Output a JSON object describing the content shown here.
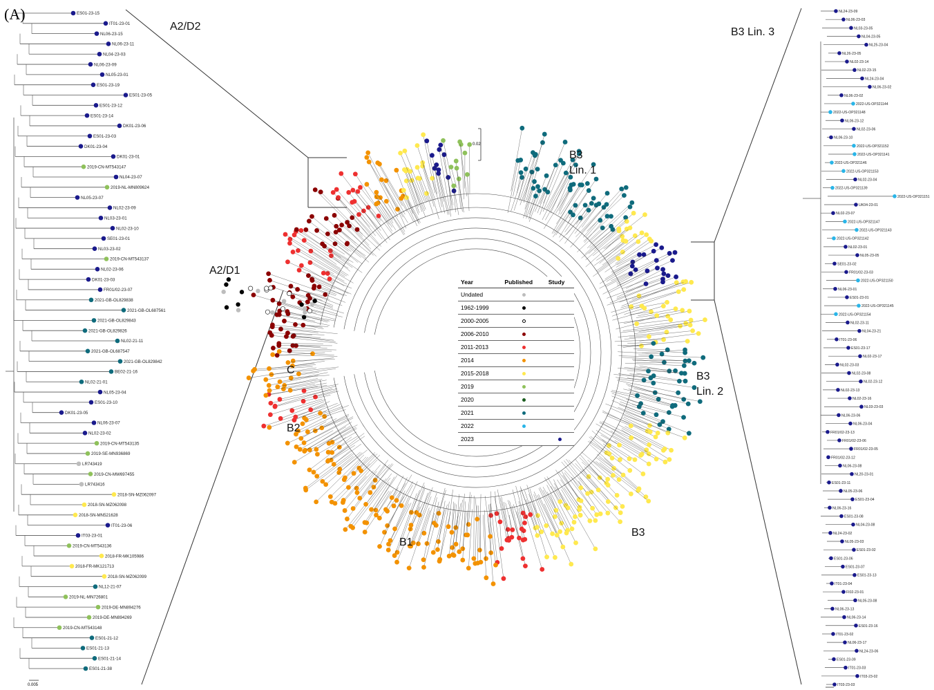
{
  "panel_label": "(A)",
  "clade_labels": {
    "a2d2": "A2/D2",
    "b3lin3": "B3 Lin. 3",
    "b3lin1": "B3\nLin. 1",
    "a2d1": "A2/D1",
    "c": "C",
    "b2": "B2",
    "b1": "B1",
    "b3": "B3",
    "b3lin2": "B3\nLin. 2"
  },
  "scale_left": "0.005",
  "scale_center": "0.02",
  "legend": {
    "headers": [
      "Year",
      "Published",
      "Study"
    ],
    "rows": [
      {
        "year": "Undated",
        "published_color": "#bdbdbd",
        "study": false
      },
      {
        "year": "1962-1999",
        "published_color": "#000000",
        "study": false
      },
      {
        "year": "2000-2005",
        "published_color": "hollow",
        "study": false
      },
      {
        "year": "2006-2010",
        "published_color": "#8b0000",
        "study": false
      },
      {
        "year": "2011-2013",
        "published_color": "#ee3030",
        "study": false
      },
      {
        "year": "2014",
        "published_color": "#f39200",
        "study": false
      },
      {
        "year": "2015-2018",
        "published_color": "#ffe94f",
        "study": false
      },
      {
        "year": "2019",
        "published_color": "#8fc15b",
        "study": false
      },
      {
        "year": "2020",
        "published_color": "#1c5e20",
        "study": false
      },
      {
        "year": "2021",
        "published_color": "#0f6b7c",
        "study": false
      },
      {
        "year": "2022",
        "published_color": "#29b5e8",
        "study": false
      },
      {
        "year": "2023",
        "published_color": "",
        "study": true,
        "study_color": "#1a1a8c"
      }
    ]
  },
  "colors": {
    "undated": "#bdbdbd",
    "y1962": "#000000",
    "y2006": "#8b0000",
    "y2011": "#ee3030",
    "y2014": "#f39200",
    "y2015": "#ffe94f",
    "y2019": "#8fc15b",
    "y2020": "#1c5e20",
    "y2021": "#0f6b7c",
    "y2022": "#29b5e8",
    "y2023": "#1a1a8c"
  },
  "left_tips": [
    {
      "label": "ES01-23-15",
      "c": "y2023"
    },
    {
      "label": "IT01-23-01",
      "c": "y2023"
    },
    {
      "label": "NL06-23-15",
      "c": "y2023"
    },
    {
      "label": "NL06-23-11",
      "c": "y2023"
    },
    {
      "label": "NL04-23-03",
      "c": "y2023"
    },
    {
      "label": "NL06-23-09",
      "c": "y2023"
    },
    {
      "label": "NL05-23-01",
      "c": "y2023"
    },
    {
      "label": "ES01-23-19",
      "c": "y2023"
    },
    {
      "label": "ES01-23-05",
      "c": "y2023"
    },
    {
      "label": "ES01-23-12",
      "c": "y2023"
    },
    {
      "label": "ES01-23-14",
      "c": "y2023"
    },
    {
      "label": "DK01-23-06",
      "c": "y2023"
    },
    {
      "label": "ES01-23-03",
      "c": "y2023"
    },
    {
      "label": "DK01-23-04",
      "c": "y2023"
    },
    {
      "label": "DK01-23-01",
      "c": "y2023"
    },
    {
      "label": "2019-CN-MT543147",
      "c": "y2019"
    },
    {
      "label": "NL04-23-07",
      "c": "y2023"
    },
    {
      "label": "2019-NL-MN809624",
      "c": "y2019"
    },
    {
      "label": "NL05-23-07",
      "c": "y2023"
    },
    {
      "label": "NL02-23-09",
      "c": "y2023"
    },
    {
      "label": "NL03-23-01",
      "c": "y2023"
    },
    {
      "label": "NL02-23-10",
      "c": "y2023"
    },
    {
      "label": "SE01-23-01",
      "c": "y2023"
    },
    {
      "label": "NL03-23-02",
      "c": "y2023"
    },
    {
      "label": "2019-CN-MT543137",
      "c": "y2019"
    },
    {
      "label": "NL02-23-06",
      "c": "y2023"
    },
    {
      "label": "DK01-23-03",
      "c": "y2023"
    },
    {
      "label": "FR01/02-23-07",
      "c": "y2023"
    },
    {
      "label": "2021-GB-OL829838",
      "c": "y2021"
    },
    {
      "label": "2021-GB-OL687561",
      "c": "y2021"
    },
    {
      "label": "2021-GB-OL829843",
      "c": "y2021"
    },
    {
      "label": "2021-GB-OL829826",
      "c": "y2021"
    },
    {
      "label": "NL02-21-11",
      "c": "y2021"
    },
    {
      "label": "2021-GB-OL687547",
      "c": "y2021"
    },
    {
      "label": "2021-GB-OL829842",
      "c": "y2021"
    },
    {
      "label": "BE02-21-16",
      "c": "y2021"
    },
    {
      "label": "NL02-21-01",
      "c": "y2021"
    },
    {
      "label": "NL05-23-04",
      "c": "y2023"
    },
    {
      "label": "ES01-23-10",
      "c": "y2023"
    },
    {
      "label": "DK01-23-05",
      "c": "y2023"
    },
    {
      "label": "NL06-23-07",
      "c": "y2023"
    },
    {
      "label": "NL02-23-02",
      "c": "y2023"
    },
    {
      "label": "2019-CN-MT543135",
      "c": "y2019"
    },
    {
      "label": "2019-SE-MN936869",
      "c": "y2019"
    },
    {
      "label": "LR743419",
      "c": "undated"
    },
    {
      "label": "2019-CN-MW697455",
      "c": "y2019"
    },
    {
      "label": "LR743416",
      "c": "undated"
    },
    {
      "label": "2018-SN-MZ062097",
      "c": "y2015"
    },
    {
      "label": "2018-SN-MZ062098",
      "c": "y2015"
    },
    {
      "label": "2018-SN-MN521628",
      "c": "y2015"
    },
    {
      "label": "IT01-23-06",
      "c": "y2023"
    },
    {
      "label": "IT03-23-01",
      "c": "y2023"
    },
    {
      "label": "2019-CN-MT543136",
      "c": "y2019"
    },
    {
      "label": "2018-FR-MK105986",
      "c": "y2015"
    },
    {
      "label": "2018-FR-MK121713",
      "c": "y2015"
    },
    {
      "label": "2018-SN-MZ062099",
      "c": "y2015"
    },
    {
      "label": "NL12-21-07",
      "c": "y2021"
    },
    {
      "label": "2019-NL-MN726801",
      "c": "y2019"
    },
    {
      "label": "2019-DE-MN894276",
      "c": "y2019"
    },
    {
      "label": "2019-DE-MN894269",
      "c": "y2019"
    },
    {
      "label": "2019-CN-MT543148",
      "c": "y2019"
    },
    {
      "label": "ES01-21-12",
      "c": "y2021"
    },
    {
      "label": "ES01-21-13",
      "c": "y2021"
    },
    {
      "label": "ES01-21-14",
      "c": "y2021"
    },
    {
      "label": "ES01-21-38",
      "c": "y2021"
    }
  ],
  "right_tips": [
    {
      "label": "NL24-23-09",
      "c": "y2023"
    },
    {
      "label": "NL06-23-03",
      "c": "y2023"
    },
    {
      "label": "NL03-23-05",
      "c": "y2023"
    },
    {
      "label": "NL04-23-05",
      "c": "y2023"
    },
    {
      "label": "NL25-23-04",
      "c": "y2023"
    },
    {
      "label": "NL26-23-05",
      "c": "y2023"
    },
    {
      "label": "NL02-23-14",
      "c": "y2023"
    },
    {
      "label": "NL02-23-15",
      "c": "y2023"
    },
    {
      "label": "NL24-23-04",
      "c": "y2023"
    },
    {
      "label": "NL06-23-02",
      "c": "y2023"
    },
    {
      "label": "NL06-23-02",
      "c": "y2023"
    },
    {
      "label": "2022-US-OP321144",
      "c": "y2022"
    },
    {
      "label": "2022-US-OP321148",
      "c": "y2022"
    },
    {
      "label": "NL06-23-12",
      "c": "y2023"
    },
    {
      "label": "NL02-23-06",
      "c": "y2023"
    },
    {
      "label": "NL06-23-10",
      "c": "y2023"
    },
    {
      "label": "2022-US-OP321152",
      "c": "y2022"
    },
    {
      "label": "2022-US-OP321141",
      "c": "y2022"
    },
    {
      "label": "2022-US-OP321146",
      "c": "y2022"
    },
    {
      "label": "2022-US-OP321153",
      "c": "y2022"
    },
    {
      "label": "NL02-23-04",
      "c": "y2023"
    },
    {
      "label": "2022-US-OP321139",
      "c": "y2022"
    },
    {
      "label": "2022-US-OP321151",
      "c": "y2022"
    },
    {
      "label": "UK04-23-01",
      "c": "y2023"
    },
    {
      "label": "NL02-23-07",
      "c": "y2023"
    },
    {
      "label": "2022-US-OP321147",
      "c": "y2022"
    },
    {
      "label": "2022-US-OP321143",
      "c": "y2022"
    },
    {
      "label": "2022-US-OP321142",
      "c": "y2022"
    },
    {
      "label": "NL02-23-01",
      "c": "y2023"
    },
    {
      "label": "NL05-23-05",
      "c": "y2023"
    },
    {
      "label": "SE01-23-02",
      "c": "y2023"
    },
    {
      "label": "FR01/02-23-03",
      "c": "y2023"
    },
    {
      "label": "2022-US-OP321150",
      "c": "y2022"
    },
    {
      "label": "NL06-23-01",
      "c": "y2023"
    },
    {
      "label": "ES01-23-01",
      "c": "y2023"
    },
    {
      "label": "2022-US-OP321145",
      "c": "y2022"
    },
    {
      "label": "2022-US-OP321154",
      "c": "y2022"
    },
    {
      "label": "NL02-23-11",
      "c": "y2023"
    },
    {
      "label": "NL04-23-21",
      "c": "y2023"
    },
    {
      "label": "IT01-23-06",
      "c": "y2023"
    },
    {
      "label": "ES01-23-17",
      "c": "y2023"
    },
    {
      "label": "NL02-23-17",
      "c": "y2023"
    },
    {
      "label": "NL02-23-03",
      "c": "y2023"
    },
    {
      "label": "NL02-23-08",
      "c": "y2023"
    },
    {
      "label": "NL02-23-12",
      "c": "y2023"
    },
    {
      "label": "NL02-23-13",
      "c": "y2023"
    },
    {
      "label": "NL02-23-16",
      "c": "y2023"
    },
    {
      "label": "NL03-23-03",
      "c": "y2023"
    },
    {
      "label": "NL06-23-06",
      "c": "y2023"
    },
    {
      "label": "NL06-23-04",
      "c": "y2023"
    },
    {
      "label": "FR01/02-23-13",
      "c": "y2023"
    },
    {
      "label": "FR01/02-23-06",
      "c": "y2023"
    },
    {
      "label": "FR01/02-23-05",
      "c": "y2023"
    },
    {
      "label": "FR01/02-23-12",
      "c": "y2023"
    },
    {
      "label": "NL06-23-08",
      "c": "y2023"
    },
    {
      "label": "NL20-23-01",
      "c": "y2023"
    },
    {
      "label": "ES01-23-11",
      "c": "y2023"
    },
    {
      "label": "NL05-23-06",
      "c": "y2023"
    },
    {
      "label": "ES01-23-04",
      "c": "y2023"
    },
    {
      "label": "NL06-23-16",
      "c": "y2023"
    },
    {
      "label": "ES01-23-08",
      "c": "y2023"
    },
    {
      "label": "NL04-23-08",
      "c": "y2023"
    },
    {
      "label": "NL24-23-02",
      "c": "y2023"
    },
    {
      "label": "NL05-23-03",
      "c": "y2023"
    },
    {
      "label": "ES01-23-02",
      "c": "y2023"
    },
    {
      "label": "ES01-23-06",
      "c": "y2023"
    },
    {
      "label": "ES01-23-07",
      "c": "y2023"
    },
    {
      "label": "ES01-23-13",
      "c": "y2023"
    },
    {
      "label": "IT01-23-04",
      "c": "y2023"
    },
    {
      "label": "FI02-23-01",
      "c": "y2023"
    },
    {
      "label": "NL05-23-08",
      "c": "y2023"
    },
    {
      "label": "NL06-23-13",
      "c": "y2023"
    },
    {
      "label": "NL06-23-14",
      "c": "y2023"
    },
    {
      "label": "ES01-23-16",
      "c": "y2023"
    },
    {
      "label": "IT01-23-02",
      "c": "y2023"
    },
    {
      "label": "NL06-23-17",
      "c": "y2023"
    },
    {
      "label": "NL24-23-06",
      "c": "y2023"
    },
    {
      "label": "ES01-23-09",
      "c": "y2023"
    },
    {
      "label": "IT01-23-03",
      "c": "y2023"
    },
    {
      "label": "IT03-23-02",
      "c": "y2023"
    },
    {
      "label": "IT03-23-03",
      "c": "y2023"
    }
  ],
  "radial_sectors": [
    {
      "from": 180,
      "to": 205,
      "c": "y2006"
    },
    {
      "from": 205,
      "to": 215,
      "c": "y2011"
    },
    {
      "from": 215,
      "to": 228,
      "c": "y2006"
    },
    {
      "from": 228,
      "to": 236,
      "c": "y2011"
    },
    {
      "from": 236,
      "to": 246,
      "c": "y2014"
    },
    {
      "from": 246,
      "to": 256,
      "c": "y2015"
    },
    {
      "from": 256,
      "to": 262,
      "c": "y2023"
    },
    {
      "from": 262,
      "to": 268,
      "c": "y2019"
    },
    {
      "from": 282,
      "to": 318,
      "c": "y2021"
    },
    {
      "from": 318,
      "to": 328,
      "c": "y2015"
    },
    {
      "from": 328,
      "to": 340,
      "c": "y2023"
    },
    {
      "from": 340,
      "to": 358,
      "c": "y2015"
    },
    {
      "from": 358,
      "to": 382,
      "c": "y2021"
    },
    {
      "from": 382,
      "to": 405,
      "c": "y2015"
    },
    {
      "from": 405,
      "to": 432,
      "c": "y2015"
    },
    {
      "from": 432,
      "to": 445,
      "c": "y2011"
    },
    {
      "from": 445,
      "to": 520,
      "c": "y2014"
    },
    {
      "from": 520,
      "to": 528,
      "c": "y2011"
    },
    {
      "from": 528,
      "to": 540,
      "c": "y2014"
    }
  ]
}
